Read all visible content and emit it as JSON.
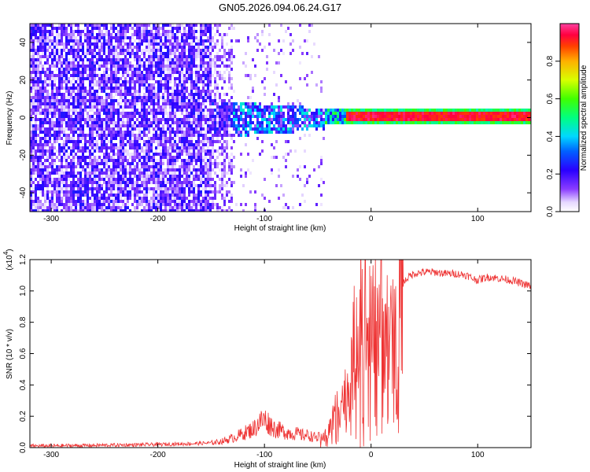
{
  "figure": {
    "title": "GN05.2026.094.06.24.G17"
  },
  "chart_data": [
    {
      "type": "heatmap",
      "xlabel": "Height of straight line (km)",
      "ylabel": "Frequency (Hz)",
      "xlim": [
        -320,
        150
      ],
      "ylim": [
        -50,
        50
      ],
      "x_ticks": [
        -300,
        -200,
        -100,
        0,
        100
      ],
      "y_ticks": [
        -40,
        -20,
        0,
        20,
        40
      ],
      "colorbar": {
        "label": "Normalized spectral amplitude",
        "range": [
          0,
          1
        ],
        "ticks": [
          0.0,
          0.2,
          0.4,
          0.6,
          0.8
        ]
      },
      "signal_band": {
        "description_visible": false,
        "center_frequency_hz": 1.5,
        "onset_height_km": -45,
        "strong_from_height_km": -25
      }
    },
    {
      "type": "line",
      "xlabel": "Height of straight line (km)",
      "ylabel": "SNR (10 * v/v)",
      "multiplier_label": "(x10",
      "multiplier_exp": "4",
      "xlim": [
        -320,
        150
      ],
      "ylim": [
        0,
        1.2
      ],
      "x_ticks": [
        -300,
        -200,
        -100,
        0,
        100
      ],
      "y_ticks": [
        0.0,
        0.2,
        0.4,
        0.6,
        0.8,
        1.0,
        1.2
      ],
      "series": [
        {
          "color": "#ee3333",
          "x": [
            -320,
            -250,
            -200,
            -170,
            -150,
            -140,
            -130,
            -120,
            -110,
            -105,
            -100,
            -95,
            -90,
            -85,
            -80,
            -75,
            -70,
            -65,
            -60,
            -55,
            -50,
            -45,
            -40,
            -35,
            -30,
            -25,
            -20,
            -15,
            -10,
            -5,
            0,
            5,
            10,
            15,
            20,
            25,
            30,
            35,
            40,
            50,
            60,
            70,
            80,
            90,
            95,
            100,
            110,
            120,
            130,
            140,
            150
          ],
          "values": [
            0.01,
            0.015,
            0.02,
            0.025,
            0.03,
            0.04,
            0.06,
            0.09,
            0.12,
            0.16,
            0.18,
            0.15,
            0.12,
            0.11,
            0.1,
            0.09,
            0.09,
            0.08,
            0.08,
            0.07,
            0.06,
            0.07,
            0.1,
            0.2,
            0.3,
            0.32,
            0.4,
            0.7,
            0.9,
            0.8,
            0.7,
            0.82,
            0.9,
            0.75,
            0.65,
            0.95,
            1.05,
            1.09,
            1.11,
            1.12,
            1.12,
            1.11,
            1.11,
            1.1,
            1.08,
            1.07,
            1.09,
            1.08,
            1.07,
            1.05,
            1.03
          ]
        }
      ]
    }
  ]
}
